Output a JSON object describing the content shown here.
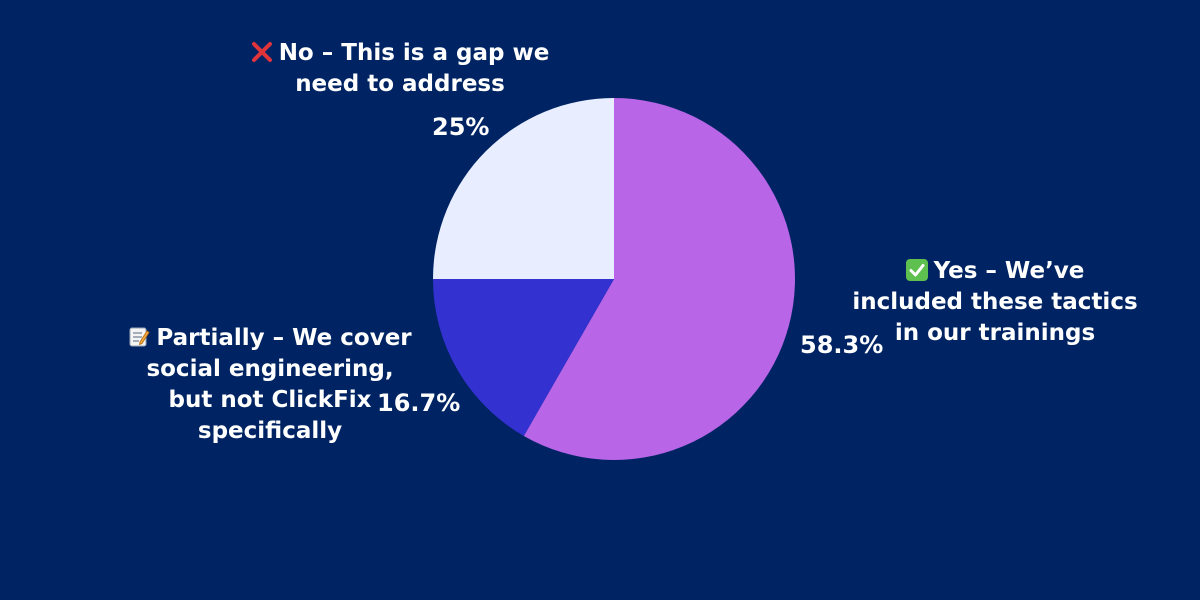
{
  "colors": {
    "background": "#002463",
    "yes": "#B865E8",
    "partially": "#3431D1",
    "no": "#E8EEFF"
  },
  "chart_data": {
    "type": "pie",
    "slices": [
      {
        "key": "yes",
        "label": "Yes – We’ve included these tactics in our trainings",
        "value": 58.3,
        "value_label": "58.3%",
        "color": "#B865E8",
        "icon": "check-mark-icon"
      },
      {
        "key": "partially",
        "label": "Partially – We cover social engineering, but not ClickFix specifically",
        "value": 16.7,
        "value_label": "16.7%",
        "color": "#3431D1",
        "icon": "memo-icon"
      },
      {
        "key": "no",
        "label": "No – This is a gap we need to address",
        "value": 25,
        "value_label": "25%",
        "color": "#E8EEFF",
        "icon": "cross-mark-icon"
      }
    ]
  },
  "labels": {
    "yes": {
      "line1": "Yes – We’ve",
      "line2": "included these tactics",
      "line3": "in our trainings",
      "pct": "58.3%"
    },
    "partially": {
      "line1": "Partially – We cover",
      "line2": "social engineering,",
      "line3": "but not ClickFix",
      "line4": "specifically",
      "pct": "16.7%"
    },
    "no": {
      "line1": "No – This is a gap we",
      "line2": "need to address",
      "pct": "25%"
    }
  }
}
